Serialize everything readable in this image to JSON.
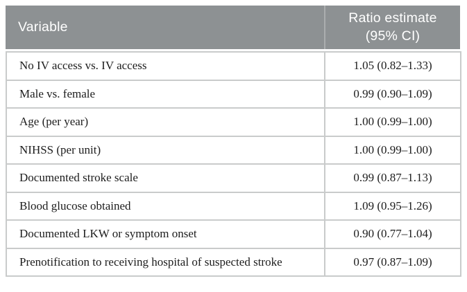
{
  "table": {
    "header": {
      "variable": "Variable",
      "ratio_estimate": "Ratio estimate (95% CI)"
    },
    "rows": [
      {
        "variable": "No IV access vs. IV access",
        "ratio_estimate": "1.05 (0.82–1.33)"
      },
      {
        "variable": "Male vs. female",
        "ratio_estimate": "0.99 (0.90–1.09)"
      },
      {
        "variable": "Age (per year)",
        "ratio_estimate": "1.00 (0.99–1.00)"
      },
      {
        "variable": "NIHSS (per unit)",
        "ratio_estimate": "1.00 (0.99–1.00)"
      },
      {
        "variable": "Documented stroke scale",
        "ratio_estimate": "0.99 (0.87–1.13)"
      },
      {
        "variable": "Blood glucose obtained",
        "ratio_estimate": "1.09 (0.95–1.26)"
      },
      {
        "variable": "Documented LKW or symptom onset",
        "ratio_estimate": "0.90 (0.77–1.04)"
      },
      {
        "variable": "Prenotification to receiving hospital of suspected stroke",
        "ratio_estimate": "0.97 (0.87–1.09)"
      }
    ]
  },
  "colors": {
    "header_bg": "#8D9193",
    "header_text": "#FFFFFF",
    "header_divider": "#ABAEAF",
    "body_border": "#C9CBCB",
    "body_text": "#1C1C1C",
    "page_bg": "#FFFFFF"
  }
}
